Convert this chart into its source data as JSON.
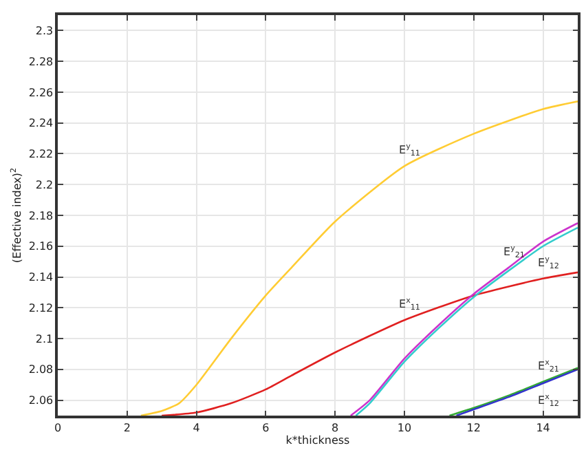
{
  "chart_data": {
    "type": "line",
    "xlabel": "k*thickness",
    "ylabel": "(Effective index)$^{2}$",
    "xlim": [
      0,
      15
    ],
    "xticks": [
      0,
      2,
      4,
      6,
      8,
      10,
      12,
      14
    ],
    "ylim": [
      2.05,
      2.31
    ],
    "yticks": [
      2.06,
      2.08,
      2.1,
      2.12,
      2.14,
      2.16,
      2.18,
      2.2,
      2.22,
      2.24,
      2.26,
      2.28,
      2.3
    ],
    "grid": true,
    "marker": "none",
    "line_style": "solid",
    "series": [
      {
        "color": "#ffcc33",
        "x": [
          2.4,
          3,
          3.5,
          4,
          5,
          6,
          6.74,
          8,
          10,
          12,
          14,
          15
        ],
        "values": [
          2.05,
          2.053,
          2.058,
          2.07,
          2.1,
          2.128,
          2.146,
          2.176,
          2.212,
          2.233,
          2.249,
          2.254
        ]
      },
      {
        "color": "#e02020",
        "x": [
          3,
          4,
          5,
          6,
          6.74,
          8,
          10,
          12,
          14,
          15
        ],
        "values": [
          2.05,
          2.052,
          2.058,
          2.067,
          2.076,
          2.091,
          2.112,
          2.128,
          2.139,
          2.143
        ]
      },
      {
        "color": "#cc33cc",
        "x": [
          8.45,
          9,
          10,
          11,
          12,
          13,
          14,
          15
        ],
        "values": [
          2.05,
          2.06,
          2.087,
          2.109,
          2.129,
          2.146,
          2.163,
          2.175
        ]
      },
      {
        "color": "#33cccc",
        "x": [
          8.6,
          9,
          10,
          11,
          12,
          13,
          14,
          15
        ],
        "values": [
          2.05,
          2.058,
          2.085,
          2.107,
          2.127,
          2.144,
          2.16,
          2.172
        ]
      },
      {
        "color": "#33aa33",
        "x": [
          11.3,
          12,
          13,
          14,
          15
        ],
        "values": [
          2.05,
          2.055,
          2.063,
          2.072,
          2.081
        ]
      },
      {
        "color": "#3333cc",
        "x": [
          11.5,
          12,
          13,
          14,
          15
        ],
        "values": [
          2.05,
          2.054,
          2.062,
          2.071,
          2.08
        ]
      }
    ],
    "annotations": [
      {
        "text": "E$^{y}$$_{11}$",
        "x": 10,
        "y": 2.212
      },
      {
        "text": "E$^{x}$$_{11}$",
        "x": 10,
        "y": 2.112
      },
      {
        "text": "E$^{y}$$_{21}$",
        "x": 13,
        "y": 2.146
      },
      {
        "text": "E$^{y}$$_{12}$",
        "x": 14,
        "y": 2.139
      },
      {
        "text": "E$^{x}$$_{21}$",
        "x": 14,
        "y": 2.072
      },
      {
        "text": "E$^{x}$$_{12}$",
        "x": 14,
        "y": 2.071
      }
    ]
  }
}
